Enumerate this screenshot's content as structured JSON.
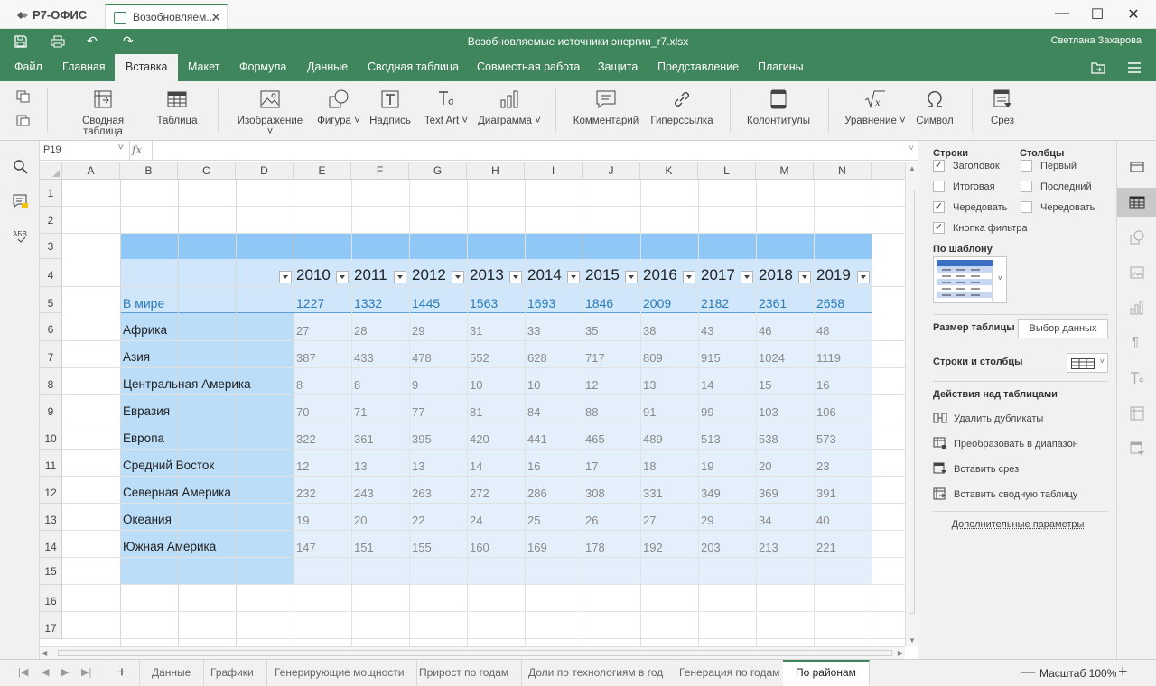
{
  "app": {
    "logo": "Р7-ОФИС",
    "tab_title": "Возобновляем...",
    "document_title": "Возобновляемые источники энергии_r7.xlsx",
    "user": "Светлана Захарова"
  },
  "menu": {
    "items": [
      "Файл",
      "Главная",
      "Вставка",
      "Макет",
      "Формула",
      "Данные",
      "Сводная таблица",
      "Совместная работа",
      "Защита",
      "Представление",
      "Плагины"
    ],
    "active": "Вставка"
  },
  "toolbar": {
    "pivot": "Сводная таблица",
    "table": "Таблица",
    "image": "Изображение",
    "shape": "Фигура",
    "textbox": "Надпись",
    "textart": "Text Art",
    "chart": "Диаграмма",
    "comment": "Комментарий",
    "hyperlink": "Гиперссылка",
    "headerfooter": "Колонтитулы",
    "equation": "Уравнение",
    "symbol": "Символ",
    "slicer": "Срез"
  },
  "formula": {
    "cell_ref": "P19",
    "fx": "fx",
    "value": ""
  },
  "columns": [
    "A",
    "B",
    "C",
    "D",
    "E",
    "F",
    "G",
    "H",
    "I",
    "J",
    "K",
    "L",
    "M",
    "N"
  ],
  "rows": [
    "1",
    "2",
    "3",
    "4",
    "5",
    "6",
    "7",
    "8",
    "9",
    "10",
    "11",
    "12",
    "13",
    "14",
    "15",
    "16",
    "17"
  ],
  "table": {
    "years": [
      "2010",
      "2011",
      "2012",
      "2013",
      "2014",
      "2015",
      "2016",
      "2017",
      "2018",
      "2019"
    ],
    "world": {
      "label": "В мире",
      "values": [
        "1227",
        "1332",
        "1445",
        "1563",
        "1693",
        "1846",
        "2009",
        "2182",
        "2361",
        "2658"
      ]
    },
    "regions": [
      {
        "name": "Африка",
        "values": [
          "27",
          "28",
          "29",
          "31",
          "33",
          "35",
          "38",
          "43",
          "46",
          "48"
        ]
      },
      {
        "name": "Азия",
        "values": [
          "387",
          "433",
          "478",
          "552",
          "628",
          "717",
          "809",
          "915",
          "1024",
          "1119"
        ]
      },
      {
        "name": "Центральная Америка",
        "values": [
          "8",
          "8",
          "9",
          "10",
          "10",
          "12",
          "13",
          "14",
          "15",
          "16"
        ]
      },
      {
        "name": "Евразия",
        "values": [
          "70",
          "71",
          "77",
          "81",
          "84",
          "88",
          "91",
          "99",
          "103",
          "106"
        ]
      },
      {
        "name": "Европа",
        "values": [
          "322",
          "361",
          "395",
          "420",
          "441",
          "465",
          "489",
          "513",
          "538",
          "573"
        ]
      },
      {
        "name": "Средний Восток",
        "values": [
          "12",
          "13",
          "13",
          "14",
          "16",
          "17",
          "18",
          "19",
          "20",
          "23"
        ]
      },
      {
        "name": "Северная Америка",
        "values": [
          "232",
          "243",
          "263",
          "272",
          "286",
          "308",
          "331",
          "349",
          "369",
          "391"
        ]
      },
      {
        "name": "Океания",
        "values": [
          "19",
          "20",
          "22",
          "24",
          "25",
          "26",
          "27",
          "29",
          "34",
          "40"
        ]
      },
      {
        "name": "Южная Америка",
        "values": [
          "147",
          "151",
          "155",
          "160",
          "169",
          "178",
          "192",
          "203",
          "213",
          "221"
        ]
      }
    ]
  },
  "panel": {
    "rows_title": "Строки",
    "cols_title": "Столбцы",
    "header": "Заголовок",
    "total": "Итоговая",
    "banded_rows": "Чередовать",
    "filter_button": "Кнопка фильтра",
    "first": "Первый",
    "last": "Последний",
    "banded_cols": "Чередовать",
    "template": "По шаблону",
    "table_size": "Размер таблицы",
    "select_data": "Выбор данных",
    "rows_cols": "Строки и столбцы",
    "actions_title": "Действия над таблицами",
    "remove_duplicates": "Удалить дубликаты",
    "convert_range": "Преобразовать в диапазон",
    "insert_slicer": "Вставить срез",
    "insert_pivot": "Вставить сводную таблицу",
    "advanced": "Дополнительные параметры"
  },
  "sheets": {
    "tabs": [
      "Данные",
      "Графики",
      "Генерирующие мощности",
      "Прирост по годам",
      "Доли по технологиям в год",
      "Генерация по годам",
      "По районам"
    ],
    "active": "По районам"
  },
  "zoom": {
    "label": "Масштаб 100%"
  },
  "colors": {
    "brand": "#40865c",
    "table_title": "#8fc7f6",
    "table_header": "#cfe6fb",
    "first_col": "#bbddf8",
    "body": "#e3f0fc",
    "world_text": "#2a7ab8"
  }
}
